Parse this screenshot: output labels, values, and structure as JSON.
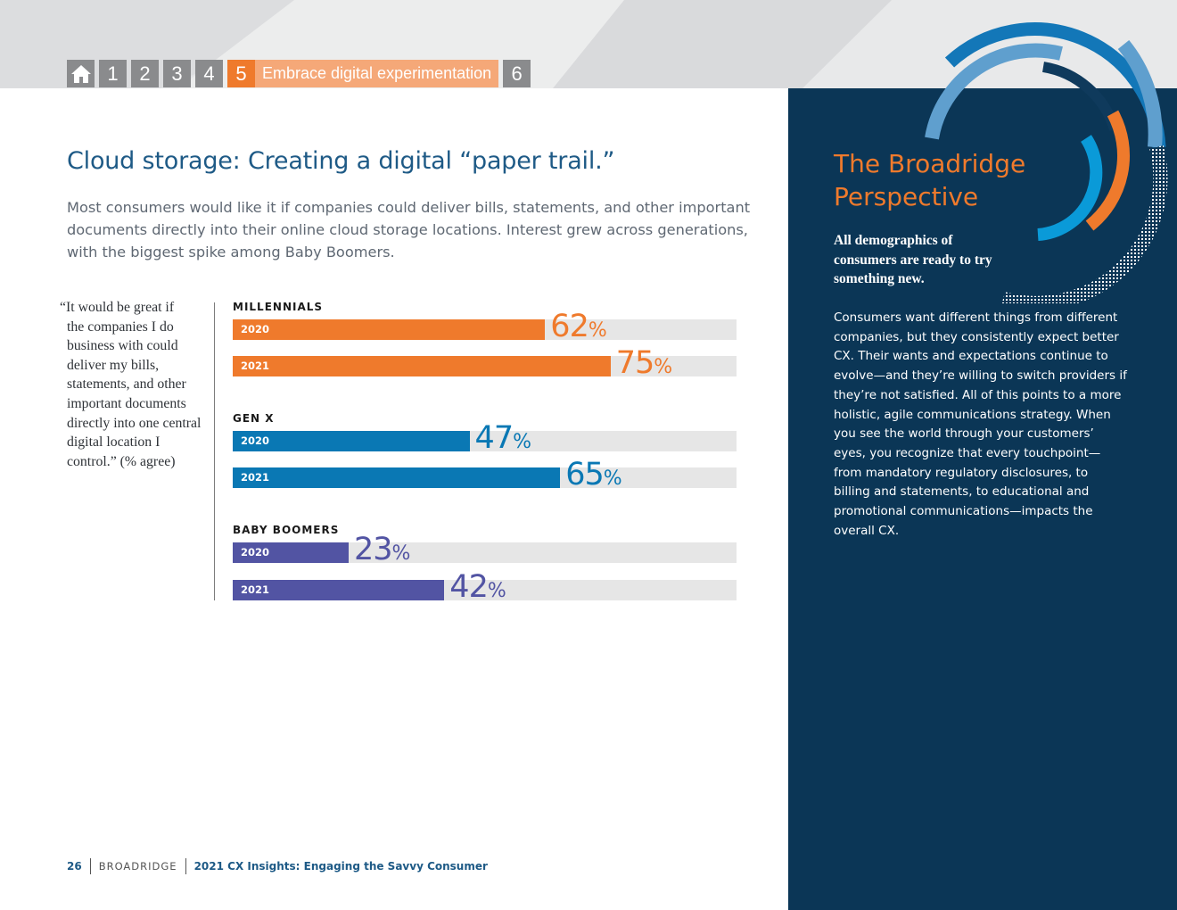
{
  "nav": {
    "home_label": "home",
    "tabs": [
      "1",
      "2",
      "3",
      "4"
    ],
    "active_num": "5",
    "active_label": "Embrace digital experimentation",
    "next": "6"
  },
  "main": {
    "title": "Cloud storage: Creating a digital “paper trail.”",
    "intro": "Most consumers would like it if companies could deliver bills, statements, and other important documents directly into their online cloud storage locations. Interest grew across generations, with the biggest spike among Baby Boomers.",
    "quote_first": "“It would be great if",
    "quote_rest": "the companies I do business with could deliver my bills, statements, and other important documents directly into one central digital location I control.” (% agree)"
  },
  "chart_data": {
    "type": "bar",
    "orientation": "horizontal",
    "unit": "%",
    "xlim": [
      0,
      100
    ],
    "groups": [
      {
        "name": "MILLENNIALS",
        "color": "#ef7a2c",
        "series": [
          {
            "year": "2020",
            "value": 62
          },
          {
            "year": "2021",
            "value": 75
          }
        ]
      },
      {
        "name": "GEN X",
        "color": "#0a78b4",
        "series": [
          {
            "year": "2020",
            "value": 47
          },
          {
            "year": "2021",
            "value": 65
          }
        ]
      },
      {
        "name": "BABY BOOMERS",
        "color": "#5254a3",
        "series": [
          {
            "year": "2020",
            "value": 23
          },
          {
            "year": "2021",
            "value": 42
          }
        ]
      }
    ]
  },
  "panel": {
    "title": "The Broadridge Perspective",
    "lead": "All demographics of consumers are ready to try something new.",
    "body": "Consumers want different things from different companies, but they consistently expect better CX. Their wants and expectations continue to evolve—and they’re willing to switch providers if they’re not satisfied. All of this points to a more holistic, agile communications strategy. When you see the world through your customers’ eyes, you recognize that every touchpoint—from mandatory regulatory disclosures, to billing and statements, to educational and promotional communications—impacts the overall CX."
  },
  "footer": {
    "page": "26",
    "brand": "BROADRIDGE",
    "doc": "2021 CX Insights: Engaging the Savvy Consumer"
  }
}
